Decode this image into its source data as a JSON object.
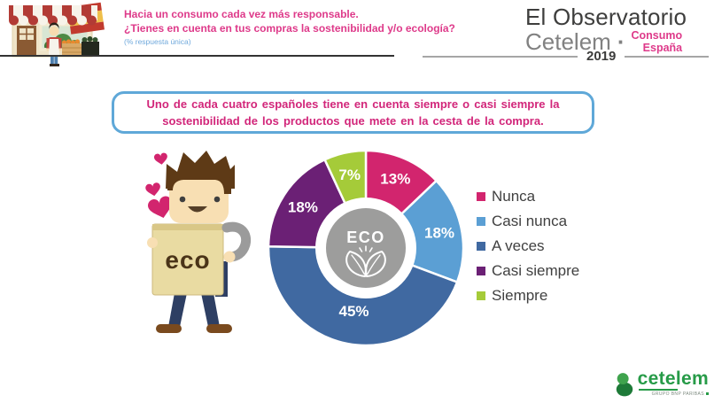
{
  "header": {
    "title_line1": "Hacia un consumo cada vez más responsable.",
    "title_line2": "¿Tienes en cuenta en tus compras la sostenibilidad y/o ecología?",
    "note": "(% respuesta única)"
  },
  "logo": {
    "line1": "El Observatorio",
    "line2": "Cetelem",
    "separator": "·",
    "tag_line1": "Consumo",
    "tag_line2": "España",
    "year": "2019"
  },
  "headline": {
    "line1": "Uno de cada cuatro españoles tiene en cuenta siempre o casi siempre la",
    "line2": "sostenibilidad de los productos que mete en la cesta de la compra."
  },
  "illustration": {
    "bag_label": "eco"
  },
  "chart_data": {
    "type": "pie",
    "variant": "donut",
    "title": "",
    "categories": [
      "Nunca",
      "Casi nunca",
      "A veces",
      "Casi siempre",
      "Siempre"
    ],
    "values": [
      13,
      18,
      45,
      18,
      7
    ],
    "labels": [
      "13%",
      "18%",
      "45%",
      "18%",
      "7%"
    ],
    "colors": [
      "#D2256E",
      "#5B9FD4",
      "#4069A1",
      "#6B2075",
      "#A5CB39"
    ],
    "center_label": "ECO",
    "center_color": "#9D9D9C",
    "legend_position": "right",
    "start_angle_deg": -90,
    "direction": "clockwise"
  },
  "footer_logo": {
    "brand": "cetelem",
    "tagline": "GRUPO BNP PARIBAS"
  },
  "theme": {
    "title_pink": "#DE3A8A",
    "headline_pink": "#D2267A",
    "note_blue": "#70A9DC",
    "box_border_blue": "#5FA8D8",
    "legend_text": "#404040",
    "cetelem_green": "#279B48"
  }
}
